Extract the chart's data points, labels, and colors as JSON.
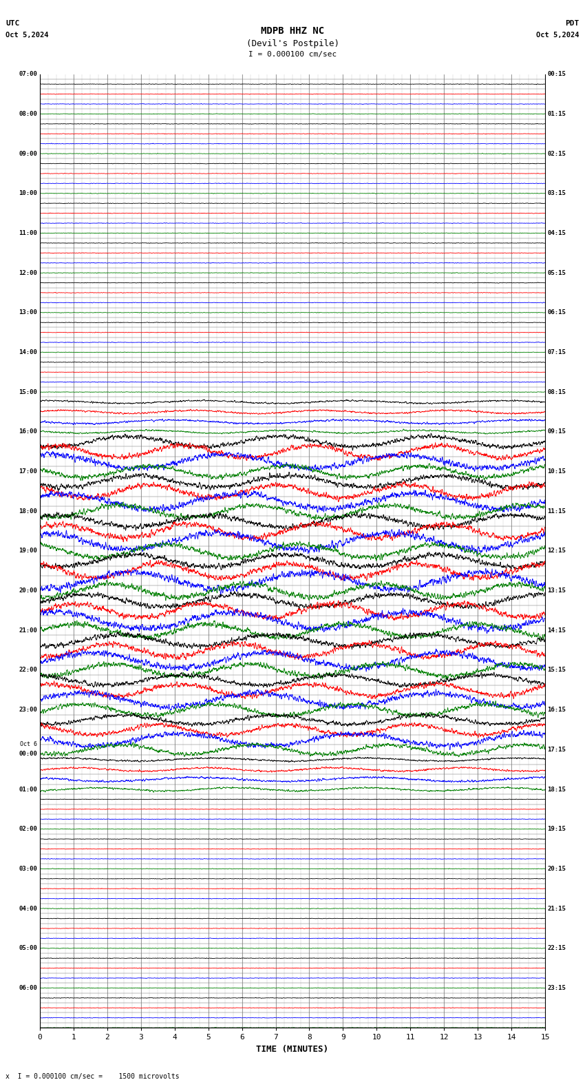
{
  "title_line1": "MDPB HHZ NC",
  "title_line2": "(Devil's Postpile)",
  "scale_label": "I = 0.000100 cm/sec",
  "utc_label": "UTC",
  "pdt_label": "PDT",
  "date_left": "Oct 5,2024",
  "date_right": "Oct 5,2024",
  "xlabel": "TIME (MINUTES)",
  "bottom_note": "x  I = 0.000100 cm/sec =    1500 microvolts",
  "bg_color": "white",
  "grid_color": "#777777",
  "fig_width": 8.5,
  "fig_height": 15.84,
  "dpi": 100,
  "utc_times": [
    "07:00",
    "08:00",
    "09:00",
    "10:00",
    "11:00",
    "12:00",
    "13:00",
    "14:00",
    "15:00",
    "16:00",
    "17:00",
    "18:00",
    "19:00",
    "20:00",
    "21:00",
    "22:00",
    "23:00",
    "Oct 6\n00:00",
    "01:00",
    "02:00",
    "03:00",
    "04:00",
    "05:00",
    "06:00"
  ],
  "pdt_times": [
    "00:15",
    "01:15",
    "02:15",
    "03:15",
    "04:15",
    "05:15",
    "06:15",
    "07:15",
    "08:15",
    "09:15",
    "10:15",
    "11:15",
    "12:15",
    "13:15",
    "14:15",
    "15:15",
    "16:15",
    "17:15",
    "18:15",
    "19:15",
    "20:15",
    "21:15",
    "22:15",
    "23:15"
  ],
  "colors": [
    "black",
    "red",
    "blue",
    "green"
  ],
  "n_hour_blocks": 24,
  "traces_per_block": 4,
  "n_pts": 3000,
  "line_width": 0.6
}
